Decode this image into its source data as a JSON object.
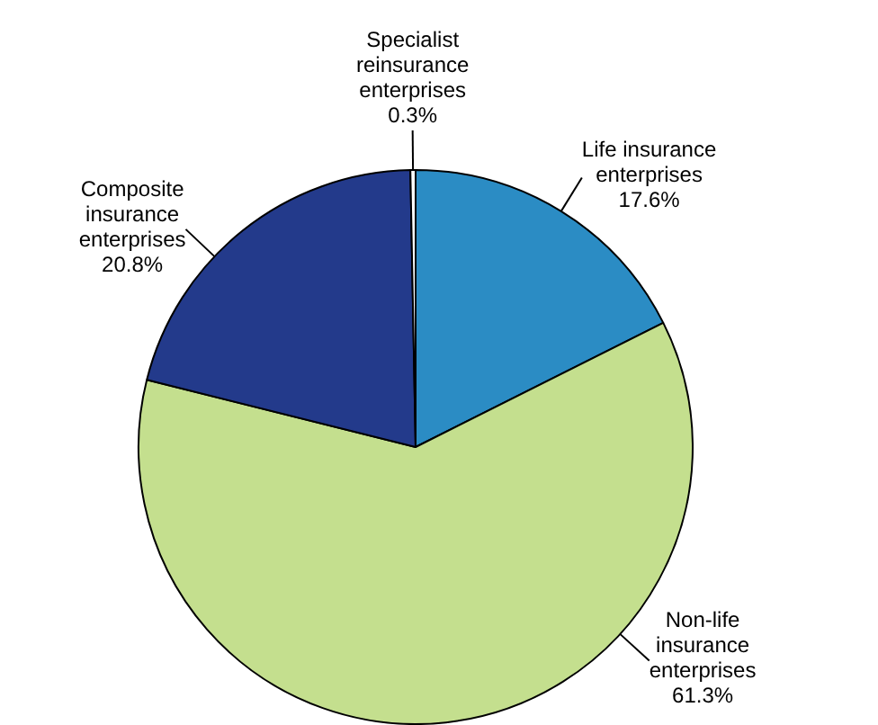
{
  "chart_data": {
    "type": "pie",
    "categories": [
      "Life insurance enterprises",
      "Non-life insurance enterprises",
      "Composite insurance enterprises",
      "Specialist reinsurance enterprises"
    ],
    "values": [
      17.6,
      61.3,
      20.8,
      0.3
    ],
    "colors": [
      "#2b8cc4",
      "#c4df8e",
      "#233a8b",
      "#ffffff"
    ],
    "value_labels": [
      "17.6%",
      "61.3%",
      "20.8%",
      "0.3%"
    ]
  }
}
